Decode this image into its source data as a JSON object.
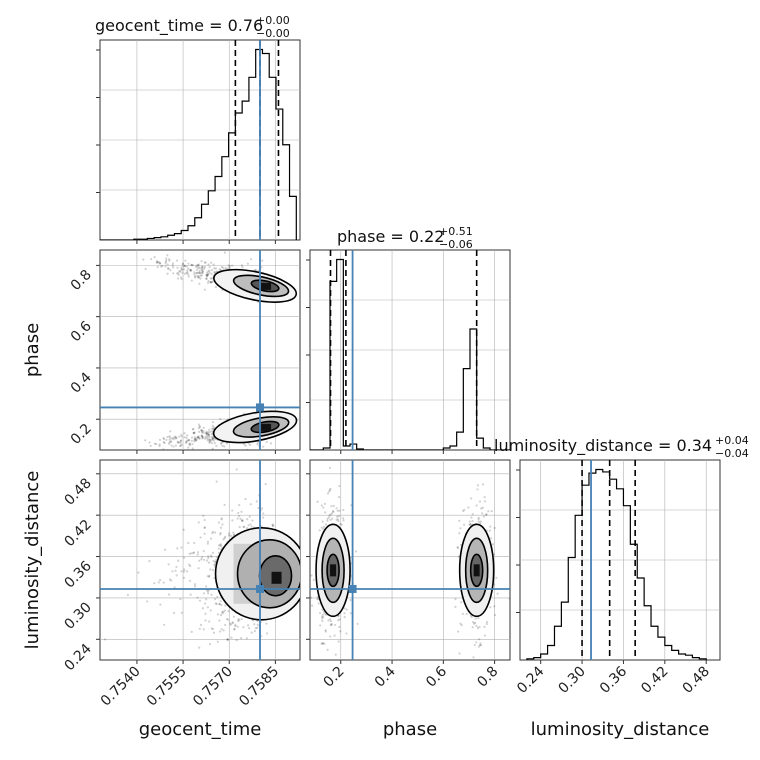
{
  "chart_data": [
    {
      "type": "histogram",
      "param": "geocent_time",
      "title": {
        "name": "geocent_time",
        "value": "0.76",
        "plus": "+0.00",
        "minus": "−0.00"
      },
      "xlabel": "geocent_time",
      "xlim": [
        0.7528,
        0.7593
      ],
      "xticks": [
        "0.7540",
        "0.7555",
        "0.7570",
        "0.7585"
      ],
      "injection": 0.758,
      "quantiles": [
        0.7572,
        0.758,
        0.7586
      ],
      "bin_edges": [
        0.7528,
        0.75302,
        0.75324,
        0.75346,
        0.75368,
        0.7539,
        0.75412,
        0.75434,
        0.75456,
        0.75478,
        0.755,
        0.75522,
        0.75544,
        0.75566,
        0.75588,
        0.7561,
        0.75632,
        0.75654,
        0.75676,
        0.75698,
        0.7572,
        0.75742,
        0.75764,
        0.75786,
        0.75808,
        0.7583,
        0.75852,
        0.75874,
        0.75896,
        0.75918
      ],
      "counts": [
        0,
        0,
        0,
        0,
        0,
        1,
        1,
        2,
        3,
        4,
        6,
        8,
        12,
        18,
        28,
        45,
        62,
        80,
        105,
        135,
        160,
        175,
        205,
        240,
        235,
        205,
        165,
        120,
        55
      ]
    },
    {
      "type": "histogram",
      "param": "phase",
      "title": {
        "name": "phase",
        "value": "0.22",
        "plus": "+0.51",
        "minus": "−0.06"
      },
      "xlabel": "phase",
      "xlim": [
        0.08,
        0.86
      ],
      "xticks": [
        "0.2",
        "0.4",
        "0.6",
        "0.8"
      ],
      "injection": 0.246,
      "quantiles": [
        0.16,
        0.22,
        0.73
      ],
      "bin_edges": [
        0.08,
        0.106,
        0.132,
        0.158,
        0.184,
        0.21,
        0.236,
        0.262,
        0.288,
        0.314,
        0.34,
        0.366,
        0.392,
        0.418,
        0.444,
        0.47,
        0.496,
        0.522,
        0.548,
        0.574,
        0.6,
        0.626,
        0.652,
        0.678,
        0.704,
        0.73,
        0.756,
        0.782,
        0.808,
        0.834,
        0.86
      ],
      "counts": [
        0,
        0,
        2,
        170,
        192,
        4,
        6,
        1,
        0,
        0,
        0,
        0,
        0,
        0,
        0,
        0,
        0,
        0,
        0,
        0,
        2,
        4,
        18,
        82,
        122,
        12,
        2,
        0,
        0,
        0
      ]
    },
    {
      "type": "histogram",
      "param": "luminosity_distance",
      "title": {
        "name": "luminosity_distance",
        "value": "0.34",
        "plus": "+0.04",
        "minus": "−0.04"
      },
      "xlabel": "luminosity_distance",
      "xlim": [
        0.21,
        0.5
      ],
      "xticks": [
        "0.24",
        "0.30",
        "0.36",
        "0.42",
        "0.48"
      ],
      "injection": 0.313,
      "quantiles": [
        0.3,
        0.34,
        0.377
      ],
      "bin_edges": [
        0.22,
        0.23,
        0.24,
        0.25,
        0.26,
        0.27,
        0.28,
        0.29,
        0.3,
        0.31,
        0.32,
        0.33,
        0.34,
        0.35,
        0.36,
        0.37,
        0.38,
        0.39,
        0.4,
        0.41,
        0.42,
        0.43,
        0.44,
        0.45,
        0.46,
        0.47,
        0.48
      ],
      "counts": [
        1,
        2,
        5,
        12,
        28,
        48,
        85,
        120,
        145,
        155,
        158,
        156,
        150,
        142,
        128,
        96,
        68,
        45,
        28,
        19,
        12,
        8,
        5,
        4,
        2,
        1
      ]
    },
    {
      "type": "scatter",
      "x_param": "geocent_time",
      "y_param": "phase",
      "ylabel": "phase",
      "xlim": [
        0.7528,
        0.7593
      ],
      "ylim": [
        0.08,
        0.86
      ],
      "yticks": [
        "0.2",
        "0.4",
        "0.6",
        "0.8"
      ],
      "injection": [
        0.758,
        0.246
      ],
      "modes": [
        {
          "x_peak": 0.7582,
          "y_center": 0.72,
          "tail_to_x": 0.7543,
          "tail_to_y": 0.82
        },
        {
          "x_peak": 0.7582,
          "y_center": 0.17,
          "tail_to_x": 0.7543,
          "tail_to_y": 0.1
        }
      ]
    },
    {
      "type": "scatter",
      "x_param": "geocent_time",
      "y_param": "luminosity_distance",
      "ylabel": "luminosity_distance",
      "xlim": [
        0.7528,
        0.7593
      ],
      "ylim": [
        0.21,
        0.5
      ],
      "yticks": [
        "0.24",
        "0.30",
        "0.36",
        "0.42",
        "0.48"
      ],
      "injection": [
        0.758,
        0.313
      ],
      "modes": [
        {
          "x_peak": 0.7582,
          "y_center": 0.335
        }
      ]
    },
    {
      "type": "scatter",
      "x_param": "phase",
      "y_param": "luminosity_distance",
      "xlim": [
        0.08,
        0.86
      ],
      "ylim": [
        0.21,
        0.5
      ],
      "injection": [
        0.246,
        0.313
      ],
      "modes": [
        {
          "x_center": 0.17,
          "y_center": 0.34
        },
        {
          "x_center": 0.73,
          "y_center": 0.34
        }
      ]
    }
  ],
  "colors": {
    "injection": "#4682b4",
    "hist": "#000000",
    "grid": "#b0b0b0",
    "points": "#000000"
  }
}
